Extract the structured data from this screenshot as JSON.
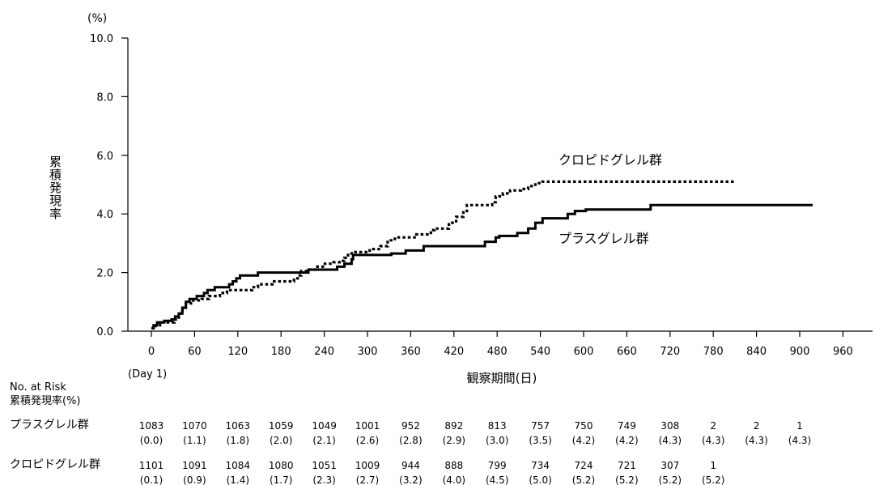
{
  "chart_data": {
    "type": "line",
    "title": "",
    "y_unit": "(%)",
    "ylabel": "累積発現率",
    "xlabel": "観察期間(日)",
    "x_origin_note": "(Day 1)",
    "xlim": [
      0,
      960
    ],
    "ylim": [
      0,
      10
    ],
    "x_ticks": [
      0,
      60,
      120,
      180,
      240,
      300,
      360,
      420,
      480,
      540,
      600,
      660,
      720,
      780,
      840,
      900,
      960
    ],
    "y_ticks": [
      "0.0",
      "2.0",
      "4.0",
      "6.0",
      "8.0",
      "10.0"
    ],
    "grid": false,
    "legend": "inline labels",
    "series": [
      {
        "name": "プラスグレル群",
        "style": "solid",
        "color": "#000000",
        "points": [
          [
            0,
            0.1
          ],
          [
            3,
            0.2
          ],
          [
            8,
            0.3
          ],
          [
            18,
            0.35
          ],
          [
            28,
            0.4
          ],
          [
            33,
            0.5
          ],
          [
            38,
            0.6
          ],
          [
            43,
            0.8
          ],
          [
            48,
            1.0
          ],
          [
            53,
            1.1
          ],
          [
            63,
            1.2
          ],
          [
            73,
            1.3
          ],
          [
            78,
            1.4
          ],
          [
            88,
            1.5
          ],
          [
            108,
            1.6
          ],
          [
            113,
            1.7
          ],
          [
            118,
            1.8
          ],
          [
            123,
            1.9
          ],
          [
            148,
            2.0
          ],
          [
            218,
            2.1
          ],
          [
            258,
            2.2
          ],
          [
            268,
            2.3
          ],
          [
            278,
            2.45
          ],
          [
            280,
            2.6
          ],
          [
            333,
            2.65
          ],
          [
            353,
            2.75
          ],
          [
            378,
            2.9
          ],
          [
            463,
            3.05
          ],
          [
            478,
            3.2
          ],
          [
            483,
            3.25
          ],
          [
            508,
            3.35
          ],
          [
            523,
            3.5
          ],
          [
            533,
            3.7
          ],
          [
            543,
            3.85
          ],
          [
            578,
            4.0
          ],
          [
            588,
            4.1
          ],
          [
            603,
            4.15
          ],
          [
            693,
            4.3
          ],
          [
            918,
            4.3
          ]
        ]
      },
      {
        "name": "クロピドグレル群",
        "style": "dotted",
        "color": "#000000",
        "points": [
          [
            0,
            0.1
          ],
          [
            6,
            0.2
          ],
          [
            12,
            0.3
          ],
          [
            22,
            0.3
          ],
          [
            32,
            0.4
          ],
          [
            38,
            0.6
          ],
          [
            43,
            0.8
          ],
          [
            48,
            0.95
          ],
          [
            55,
            1.05
          ],
          [
            70,
            1.1
          ],
          [
            80,
            1.2
          ],
          [
            95,
            1.3
          ],
          [
            105,
            1.4
          ],
          [
            140,
            1.5
          ],
          [
            148,
            1.6
          ],
          [
            168,
            1.7
          ],
          [
            198,
            1.8
          ],
          [
            203,
            1.9
          ],
          [
            208,
            2.05
          ],
          [
            218,
            2.1
          ],
          [
            228,
            2.2
          ],
          [
            238,
            2.3
          ],
          [
            253,
            2.35
          ],
          [
            263,
            2.4
          ],
          [
            268,
            2.5
          ],
          [
            273,
            2.6
          ],
          [
            278,
            2.7
          ],
          [
            303,
            2.8
          ],
          [
            318,
            2.9
          ],
          [
            328,
            3.1
          ],
          [
            338,
            3.2
          ],
          [
            368,
            3.3
          ],
          [
            388,
            3.45
          ],
          [
            393,
            3.5
          ],
          [
            413,
            3.7
          ],
          [
            423,
            3.9
          ],
          [
            433,
            4.05
          ],
          [
            438,
            4.3
          ],
          [
            473,
            4.4
          ],
          [
            478,
            4.6
          ],
          [
            488,
            4.7
          ],
          [
            498,
            4.8
          ],
          [
            513,
            4.85
          ],
          [
            523,
            4.95
          ],
          [
            533,
            5.05
          ],
          [
            543,
            5.1
          ],
          [
            810,
            5.1
          ]
        ]
      }
    ],
    "risk_table": {
      "header1": "No. at Risk",
      "header2": "累積発現率(%)",
      "times": [
        0,
        60,
        120,
        180,
        240,
        300,
        360,
        420,
        480,
        540,
        600,
        660,
        720,
        780,
        840,
        900
      ],
      "rows": [
        {
          "group": "プラスグレル群",
          "n": [
            "1083",
            "1070",
            "1063",
            "1059",
            "1049",
            "1001",
            "952",
            "892",
            "813",
            "757",
            "750",
            "749",
            "308",
            "2",
            "2",
            "1"
          ],
          "pct": [
            "(0.0)",
            "(1.1)",
            "(1.8)",
            "(2.0)",
            "(2.1)",
            "(2.6)",
            "(2.8)",
            "(2.9)",
            "(3.0)",
            "(3.5)",
            "(4.2)",
            "(4.2)",
            "(4.3)",
            "(4.3)",
            "(4.3)",
            "(4.3)"
          ]
        },
        {
          "group": "クロピドグレル群",
          "n": [
            "1101",
            "1091",
            "1084",
            "1080",
            "1051",
            "1009",
            "944",
            "888",
            "799",
            "734",
            "724",
            "721",
            "307",
            "1"
          ],
          "pct": [
            "(0.1)",
            "(0.9)",
            "(1.4)",
            "(1.7)",
            "(2.3)",
            "(2.7)",
            "(3.2)",
            "(4.0)",
            "(4.5)",
            "(5.0)",
            "(5.2)",
            "(5.2)",
            "(5.2)",
            "(5.2)"
          ]
        }
      ]
    }
  }
}
